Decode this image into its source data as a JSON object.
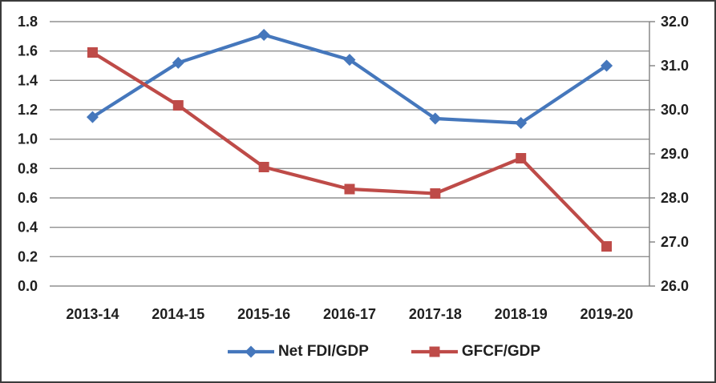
{
  "frame": {
    "background_color": "#ffffff",
    "border_color": "#3b3b3b"
  },
  "chart_data": {
    "type": "line",
    "title": "",
    "xlabel": "",
    "ylabel": "",
    "categories": [
      "2013-14",
      "2014-15",
      "2015-16",
      "2016-17",
      "2017-18",
      "2018-19",
      "2019-20"
    ],
    "series": [
      {
        "name": "Net FDI/GDP",
        "axis": "left",
        "color": "#4577BC",
        "marker": "diamond",
        "values": [
          1.15,
          1.52,
          1.71,
          1.54,
          1.14,
          1.11,
          1.5
        ]
      },
      {
        "name": "GFCF/GDP",
        "axis": "right",
        "color": "#BE4B48",
        "marker": "square",
        "values": [
          31.3,
          30.1,
          28.7,
          28.2,
          28.1,
          28.9,
          26.9
        ]
      }
    ],
    "left_axis": {
      "min": 0.0,
      "max": 1.8,
      "step": 0.2,
      "tick_labels": [
        "1.8",
        "1.6",
        "1.4",
        "1.2",
        "1.0",
        "0.8",
        "0.6",
        "0.4",
        "0.2",
        "0.0"
      ]
    },
    "right_axis": {
      "min": 26.0,
      "max": 32.0,
      "step": 1.0,
      "tick_labels": [
        "32.0",
        "31.0",
        "30.0",
        "29.0",
        "28.0",
        "27.0",
        "26.0"
      ]
    },
    "grid": "horizontal-major",
    "gridline_color": "#909090",
    "axis_line_color": "#808080",
    "tick_label_color": "#1f1f1f",
    "legend_position": "bottom"
  }
}
